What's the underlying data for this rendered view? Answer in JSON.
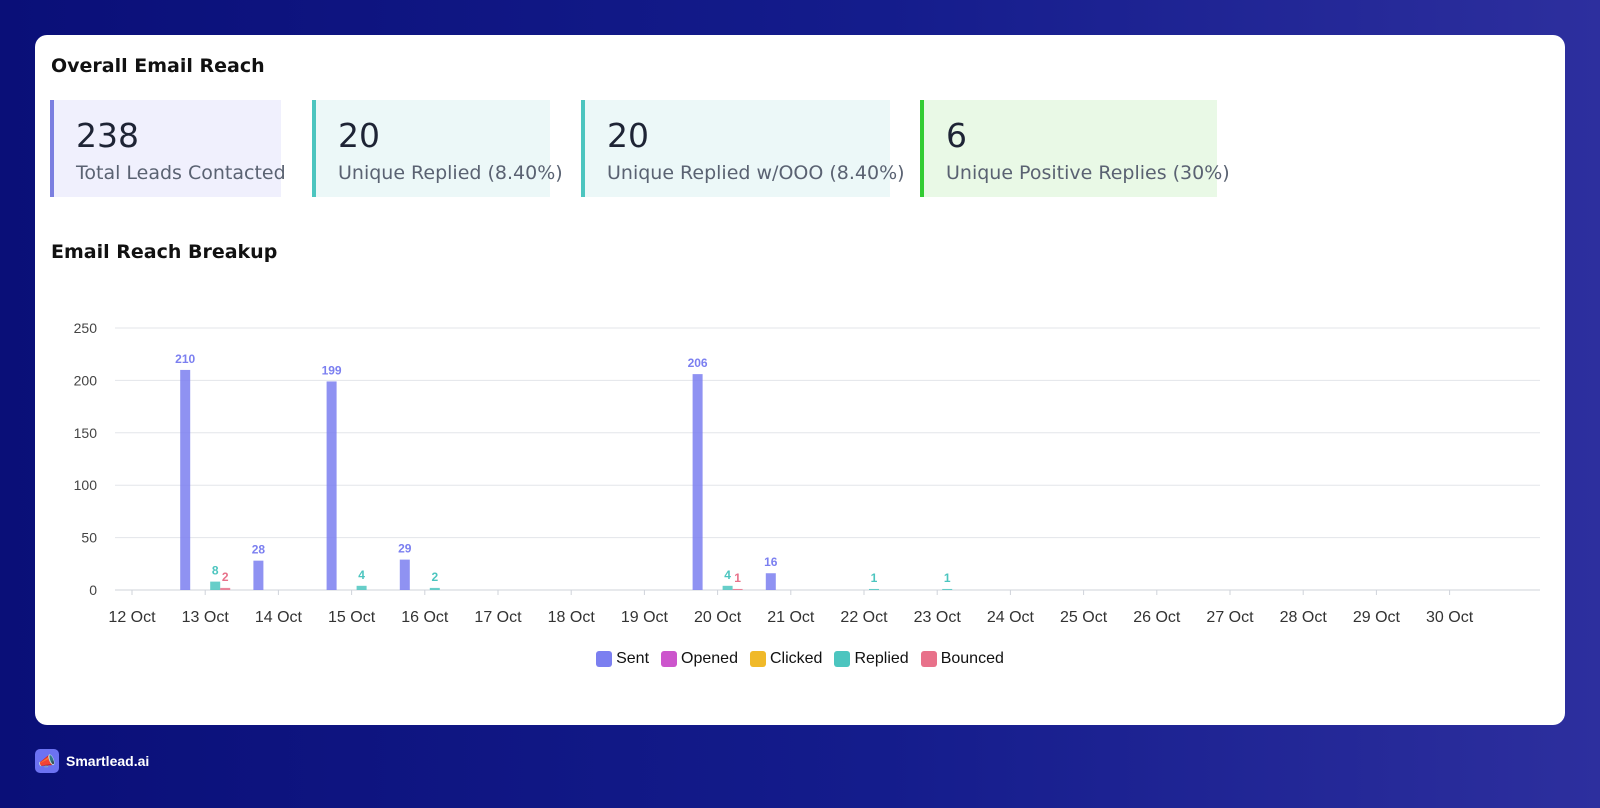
{
  "sections": {
    "overall_title": "Overall Email Reach",
    "breakup_title": "Email Reach Breakup"
  },
  "stats": [
    {
      "value": "238",
      "label": "Total Leads Contacted",
      "accent": "#7b7fe0",
      "bg": "#f0f0fd"
    },
    {
      "value": "20",
      "label": "Unique Replied (8.40%)",
      "accent": "#4cc5bf",
      "bg": "#ecf8f8"
    },
    {
      "value": "20",
      "label": "Unique Replied w/OOO (8.40%)",
      "accent": "#4cc5bf",
      "bg": "#ecf8f8"
    },
    {
      "value": "6",
      "label": "Unique Positive Replies (30%)",
      "accent": "#33cc33",
      "bg": "#e9f9e6"
    }
  ],
  "chart_data": {
    "type": "bar",
    "categories": [
      "12 Oct",
      "13 Oct",
      "14 Oct",
      "15 Oct",
      "16 Oct",
      "17 Oct",
      "18 Oct",
      "19 Oct",
      "20 Oct",
      "21 Oct",
      "22 Oct",
      "23 Oct",
      "24 Oct",
      "25 Oct",
      "26 Oct",
      "27 Oct",
      "28 Oct",
      "29 Oct",
      "30 Oct"
    ],
    "series": [
      {
        "name": "Sent",
        "color": "#7b7ff0",
        "values": [
          210,
          28,
          199,
          29,
          0,
          0,
          0,
          206,
          16,
          0,
          0,
          0,
          0,
          0,
          0,
          0,
          0,
          0,
          0
        ]
      },
      {
        "name": "Opened",
        "color": "#cc55cc",
        "values": [
          0,
          0,
          0,
          0,
          0,
          0,
          0,
          0,
          0,
          0,
          0,
          0,
          0,
          0,
          0,
          0,
          0,
          0,
          0
        ]
      },
      {
        "name": "Clicked",
        "color": "#f0b929",
        "values": [
          0,
          0,
          0,
          0,
          0,
          0,
          0,
          0,
          0,
          0,
          0,
          0,
          0,
          0,
          0,
          0,
          0,
          0,
          0
        ]
      },
      {
        "name": "Replied",
        "color": "#4cc5bf",
        "values": [
          8,
          0,
          4,
          2,
          0,
          0,
          0,
          4,
          0,
          1,
          1,
          0,
          0,
          0,
          0,
          0,
          0,
          0,
          0
        ]
      },
      {
        "name": "Bounced",
        "color": "#e8718a",
        "values": [
          2,
          0,
          0,
          0,
          0,
          0,
          0,
          1,
          0,
          0,
          0,
          0,
          0,
          0,
          0,
          0,
          0,
          0,
          0
        ]
      }
    ],
    "ylim": [
      0,
      250
    ],
    "yticks": [
      0,
      50,
      100,
      150,
      200,
      250
    ],
    "grid": true,
    "legend": "bottom-center"
  },
  "brand": {
    "name": "Smartlead.ai",
    "icon": "megaphone-icon"
  }
}
